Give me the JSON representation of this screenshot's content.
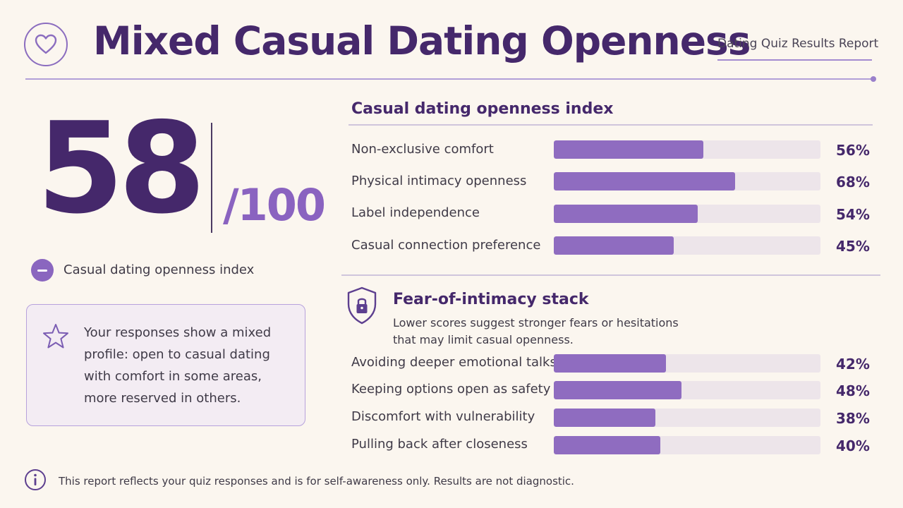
{
  "header": {
    "title": "Mixed Casual Dating Openness",
    "report_label": "Dating Quiz Results Report",
    "logo_icon": "heart-icon"
  },
  "score": {
    "value": "58",
    "max": "/100",
    "caption": "Casual dating openness index",
    "caption_icon": "minus-circle-icon"
  },
  "summary": {
    "icon": "star-icon",
    "text": "Your responses show a mixed profile: open to casual dating with comfort in some areas, more reserved in others."
  },
  "openness": {
    "title": "Casual dating openness index",
    "items": [
      {
        "label": "Non-exclusive comfort",
        "value": 56,
        "value_label": "56%"
      },
      {
        "label": "Physical intimacy openness",
        "value": 68,
        "value_label": "68%"
      },
      {
        "label": "Label independence",
        "value": 54,
        "value_label": "54%"
      },
      {
        "label": "Casual connection preference",
        "value": 45,
        "value_label": "45%"
      }
    ]
  },
  "fear": {
    "icon": "shield-lock-icon",
    "title": "Fear-of-intimacy stack",
    "subtitle": "Lower scores suggest stronger fears or hesitations that may limit casual openness.",
    "items": [
      {
        "label": "Avoiding deeper emotional talks",
        "value": 42,
        "value_label": "42%"
      },
      {
        "label": "Keeping options open as safety",
        "value": 48,
        "value_label": "48%"
      },
      {
        "label": "Discomfort with vulnerability",
        "value": 38,
        "value_label": "38%"
      },
      {
        "label": "Pulling back after closeness",
        "value": 40,
        "value_label": "40%"
      }
    ]
  },
  "footer": {
    "icon": "info-icon",
    "note": "This report reflects your quiz responses and is for self-awareness only. Results are not diagnostic."
  },
  "colors": {
    "accent": "#45286b",
    "bar_fill": "#8f6cc0",
    "bar_track": "#ede5ea",
    "background": "#fbf6ef"
  }
}
